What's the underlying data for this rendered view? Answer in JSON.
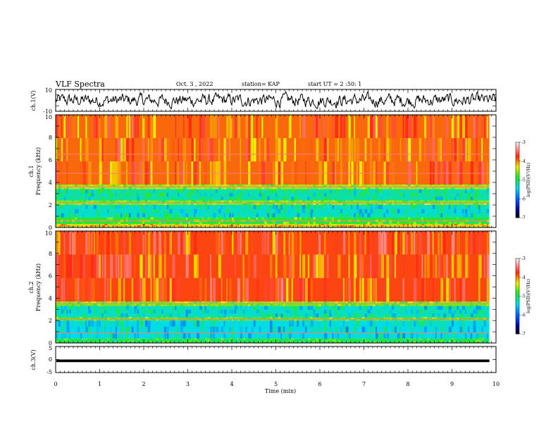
{
  "header": {
    "title": "VLF Spectra",
    "date": "Oct. 3 , 2022",
    "station": "station= KAP",
    "start_time": "start UT =  2 :50: 1"
  },
  "chart_data": [
    {
      "type": "line",
      "panel": "ch1-waveform",
      "ylabel": "ch.1(V)",
      "ylim": [
        -10,
        10
      ],
      "yticks": [
        "10",
        "-10"
      ],
      "series_color": "#000000"
    },
    {
      "type": "heatmap",
      "panel": "ch1-spectrogram",
      "ylabel": "ch.1\nFrequency (kHz)",
      "ylabel_line1": "ch.1",
      "ylabel_line2": "Frequency (kHz)",
      "ylim": [
        0,
        10
      ],
      "yticks": [
        "0",
        "2",
        "4",
        "6",
        "8",
        "10"
      ],
      "xlim": [
        0,
        9.85
      ],
      "bands_kHz": [
        {
          "from": 0.0,
          "to": 0.3,
          "level": -4.2
        },
        {
          "from": 0.3,
          "to": 0.9,
          "level": -4.8
        },
        {
          "from": 0.9,
          "to": 2.0,
          "level": -5.3
        },
        {
          "from": 2.0,
          "to": 2.4,
          "level": -4.6
        },
        {
          "from": 2.4,
          "to": 3.4,
          "level": -5.2
        },
        {
          "from": 3.4,
          "to": 3.8,
          "level": -4.5
        },
        {
          "from": 3.8,
          "to": 10.0,
          "level": -3.9
        }
      ],
      "lines_kHz": [
        3.6,
        4.8,
        6.5,
        2.2,
        0.6
      ],
      "colorbar": {
        "label": "log(PSD)(V²/Hz)",
        "range": [
          -7,
          -3
        ],
        "ticks": [
          "-3",
          "-4",
          "-5",
          "-6",
          "-7"
        ]
      }
    },
    {
      "type": "heatmap",
      "panel": "ch2-spectrogram",
      "ylabel": "ch.2\nFrequency (kHz)",
      "ylabel_line1": "ch.2",
      "ylabel_line2": "Frequency (kHz)",
      "ylim": [
        0,
        10
      ],
      "yticks": [
        "0",
        "2",
        "4",
        "6",
        "8",
        "10"
      ],
      "xlim": [
        0,
        9.85
      ],
      "bands_kHz": [
        {
          "from": 0.0,
          "to": 0.4,
          "level": -4.9
        },
        {
          "from": 0.4,
          "to": 2.0,
          "level": -5.4
        },
        {
          "from": 2.0,
          "to": 2.3,
          "level": -4.7
        },
        {
          "from": 2.3,
          "to": 3.3,
          "level": -5.3
        },
        {
          "from": 3.3,
          "to": 3.7,
          "level": -4.6
        },
        {
          "from": 3.7,
          "to": 10.0,
          "level": -3.8
        }
      ],
      "lines_kHz": [
        3.5,
        2.1,
        0.9
      ],
      "colorbar": {
        "label": "log(PSD)(V²/Hz)",
        "range": [
          -7,
          -3
        ],
        "ticks": [
          "-3",
          "-4",
          "-5",
          "-6",
          "-7"
        ]
      }
    },
    {
      "type": "line",
      "panel": "ch3-waveform",
      "ylabel": "ch.3(V)",
      "ylim": [
        -5,
        5
      ],
      "yticks": [
        "5",
        "0",
        "-5"
      ],
      "xlabel": "Time (min)",
      "xlim": [
        0,
        10
      ],
      "xticks": [
        "0",
        "1",
        "2",
        "3",
        "4",
        "5",
        "6",
        "7",
        "8",
        "9",
        "10"
      ],
      "band": [
        -1.0,
        0.0
      ],
      "series_color": "#000000"
    }
  ]
}
